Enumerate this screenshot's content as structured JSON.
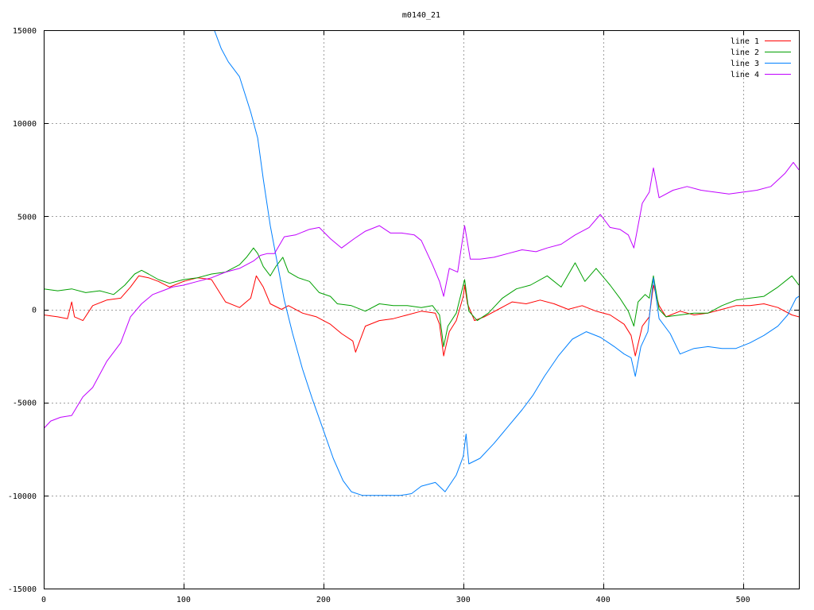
{
  "chart_data": {
    "type": "line",
    "title": "m0140_21",
    "xlabel": "",
    "ylabel": "",
    "xlim": [
      0,
      540
    ],
    "ylim": [
      -15000,
      15000
    ],
    "x_ticks": [
      0,
      100,
      200,
      300,
      400,
      500
    ],
    "y_ticks": [
      -15000,
      -10000,
      -5000,
      0,
      5000,
      10000,
      15000
    ],
    "grid": true,
    "legend_position": "top-right",
    "series": [
      {
        "name": "line 1",
        "color": "#ff0000",
        "points": [
          [
            0,
            -300
          ],
          [
            10,
            -400
          ],
          [
            17,
            -500
          ],
          [
            20,
            400
          ],
          [
            22,
            -400
          ],
          [
            28,
            -600
          ],
          [
            35,
            200
          ],
          [
            45,
            500
          ],
          [
            55,
            600
          ],
          [
            62,
            1200
          ],
          [
            68,
            1800
          ],
          [
            75,
            1700
          ],
          [
            82,
            1500
          ],
          [
            90,
            1200
          ],
          [
            100,
            1500
          ],
          [
            110,
            1700
          ],
          [
            120,
            1600
          ],
          [
            130,
            400
          ],
          [
            140,
            100
          ],
          [
            148,
            600
          ],
          [
            152,
            1800
          ],
          [
            157,
            1200
          ],
          [
            162,
            300
          ],
          [
            170,
            0
          ],
          [
            175,
            200
          ],
          [
            185,
            -200
          ],
          [
            195,
            -400
          ],
          [
            205,
            -800
          ],
          [
            213,
            -1300
          ],
          [
            221,
            -1700
          ],
          [
            223,
            -2300
          ],
          [
            230,
            -900
          ],
          [
            240,
            -600
          ],
          [
            250,
            -500
          ],
          [
            260,
            -300
          ],
          [
            270,
            -100
          ],
          [
            280,
            -200
          ],
          [
            283,
            -800
          ],
          [
            286,
            -2500
          ],
          [
            290,
            -1200
          ],
          [
            295,
            -600
          ],
          [
            300,
            700
          ],
          [
            301,
            1300
          ],
          [
            303,
            300
          ],
          [
            308,
            -600
          ],
          [
            315,
            -400
          ],
          [
            325,
            0
          ],
          [
            335,
            400
          ],
          [
            345,
            300
          ],
          [
            355,
            500
          ],
          [
            365,
            300
          ],
          [
            375,
            0
          ],
          [
            385,
            200
          ],
          [
            395,
            -100
          ],
          [
            405,
            -300
          ],
          [
            415,
            -800
          ],
          [
            420,
            -1400
          ],
          [
            423,
            -2500
          ],
          [
            428,
            -900
          ],
          [
            433,
            -400
          ],
          [
            436,
            1300
          ],
          [
            440,
            200
          ],
          [
            445,
            -400
          ],
          [
            455,
            -100
          ],
          [
            465,
            -300
          ],
          [
            475,
            -200
          ],
          [
            485,
            0
          ],
          [
            495,
            200
          ],
          [
            505,
            200
          ],
          [
            515,
            300
          ],
          [
            525,
            100
          ],
          [
            535,
            -300
          ],
          [
            540,
            -400
          ]
        ]
      },
      {
        "name": "line 2",
        "color": "#00a000",
        "points": [
          [
            0,
            1100
          ],
          [
            10,
            1000
          ],
          [
            20,
            1100
          ],
          [
            30,
            900
          ],
          [
            40,
            1000
          ],
          [
            50,
            800
          ],
          [
            58,
            1300
          ],
          [
            65,
            1900
          ],
          [
            70,
            2100
          ],
          [
            75,
            1900
          ],
          [
            82,
            1600
          ],
          [
            90,
            1400
          ],
          [
            100,
            1600
          ],
          [
            110,
            1700
          ],
          [
            120,
            1900
          ],
          [
            130,
            2000
          ],
          [
            140,
            2400
          ],
          [
            145,
            2800
          ],
          [
            150,
            3300
          ],
          [
            153,
            3000
          ],
          [
            157,
            2300
          ],
          [
            162,
            1800
          ],
          [
            166,
            2300
          ],
          [
            171,
            2800
          ],
          [
            175,
            2000
          ],
          [
            182,
            1700
          ],
          [
            190,
            1500
          ],
          [
            197,
            900
          ],
          [
            205,
            700
          ],
          [
            210,
            300
          ],
          [
            220,
            200
          ],
          [
            230,
            -100
          ],
          [
            240,
            300
          ],
          [
            250,
            200
          ],
          [
            260,
            200
          ],
          [
            270,
            100
          ],
          [
            278,
            200
          ],
          [
            283,
            -300
          ],
          [
            286,
            -2000
          ],
          [
            289,
            -900
          ],
          [
            295,
            -200
          ],
          [
            301,
            1600
          ],
          [
            304,
            -100
          ],
          [
            310,
            -600
          ],
          [
            318,
            -200
          ],
          [
            328,
            600
          ],
          [
            338,
            1100
          ],
          [
            348,
            1300
          ],
          [
            360,
            1800
          ],
          [
            370,
            1200
          ],
          [
            380,
            2500
          ],
          [
            387,
            1500
          ],
          [
            395,
            2200
          ],
          [
            405,
            1300
          ],
          [
            412,
            600
          ],
          [
            418,
            -100
          ],
          [
            422,
            -900
          ],
          [
            425,
            400
          ],
          [
            430,
            800
          ],
          [
            433,
            600
          ],
          [
            436,
            1800
          ],
          [
            440,
            0
          ],
          [
            445,
            -400
          ],
          [
            455,
            -300
          ],
          [
            465,
            -200
          ],
          [
            475,
            -200
          ],
          [
            485,
            200
          ],
          [
            495,
            500
          ],
          [
            505,
            600
          ],
          [
            515,
            700
          ],
          [
            525,
            1200
          ],
          [
            535,
            1800
          ],
          [
            540,
            1300
          ]
        ]
      },
      {
        "name": "line 3",
        "color": "#0080ff",
        "points": [
          [
            122,
            15000
          ],
          [
            127,
            14000
          ],
          [
            132,
            13300
          ],
          [
            140,
            12500
          ],
          [
            148,
            10600
          ],
          [
            153,
            9200
          ],
          [
            157,
            7000
          ],
          [
            162,
            4500
          ],
          [
            167,
            2500
          ],
          [
            172,
            500
          ],
          [
            178,
            -1300
          ],
          [
            185,
            -3200
          ],
          [
            192,
            -4800
          ],
          [
            200,
            -6500
          ],
          [
            207,
            -8000
          ],
          [
            214,
            -9200
          ],
          [
            220,
            -9800
          ],
          [
            228,
            -10000
          ],
          [
            240,
            -10000
          ],
          [
            255,
            -10000
          ],
          [
            263,
            -9900
          ],
          [
            270,
            -9500
          ],
          [
            280,
            -9300
          ],
          [
            287,
            -9800
          ],
          [
            295,
            -8900
          ],
          [
            300,
            -7900
          ],
          [
            302,
            -6700
          ],
          [
            304,
            -8300
          ],
          [
            312,
            -8000
          ],
          [
            322,
            -7200
          ],
          [
            332,
            -6300
          ],
          [
            342,
            -5400
          ],
          [
            350,
            -4600
          ],
          [
            358,
            -3600
          ],
          [
            368,
            -2500
          ],
          [
            378,
            -1600
          ],
          [
            388,
            -1200
          ],
          [
            398,
            -1500
          ],
          [
            408,
            -2000
          ],
          [
            415,
            -2400
          ],
          [
            420,
            -2600
          ],
          [
            423,
            -3600
          ],
          [
            427,
            -2000
          ],
          [
            432,
            -1200
          ],
          [
            436,
            1700
          ],
          [
            440,
            -500
          ],
          [
            448,
            -1300
          ],
          [
            455,
            -2400
          ],
          [
            465,
            -2100
          ],
          [
            475,
            -2000
          ],
          [
            485,
            -2100
          ],
          [
            495,
            -2100
          ],
          [
            505,
            -1800
          ],
          [
            515,
            -1400
          ],
          [
            525,
            -900
          ],
          [
            532,
            -300
          ],
          [
            538,
            600
          ],
          [
            540,
            700
          ]
        ]
      },
      {
        "name": "line 4",
        "color": "#c000ff",
        "points": [
          [
            0,
            -6400
          ],
          [
            5,
            -6000
          ],
          [
            12,
            -5800
          ],
          [
            20,
            -5700
          ],
          [
            28,
            -4700
          ],
          [
            35,
            -4200
          ],
          [
            45,
            -2800
          ],
          [
            55,
            -1800
          ],
          [
            62,
            -400
          ],
          [
            70,
            300
          ],
          [
            78,
            800
          ],
          [
            85,
            1000
          ],
          [
            92,
            1200
          ],
          [
            100,
            1300
          ],
          [
            110,
            1500
          ],
          [
            120,
            1700
          ],
          [
            130,
            2000
          ],
          [
            140,
            2200
          ],
          [
            150,
            2600
          ],
          [
            155,
            2900
          ],
          [
            160,
            3000
          ],
          [
            165,
            3000
          ],
          [
            172,
            3900
          ],
          [
            180,
            4000
          ],
          [
            190,
            4300
          ],
          [
            197,
            4400
          ],
          [
            205,
            3800
          ],
          [
            213,
            3300
          ],
          [
            222,
            3800
          ],
          [
            230,
            4200
          ],
          [
            240,
            4500
          ],
          [
            248,
            4100
          ],
          [
            256,
            4100
          ],
          [
            265,
            4000
          ],
          [
            270,
            3700
          ],
          [
            278,
            2400
          ],
          [
            283,
            1500
          ],
          [
            286,
            700
          ],
          [
            290,
            2200
          ],
          [
            296,
            2000
          ],
          [
            301,
            4500
          ],
          [
            305,
            2700
          ],
          [
            312,
            2700
          ],
          [
            322,
            2800
          ],
          [
            332,
            3000
          ],
          [
            342,
            3200
          ],
          [
            352,
            3100
          ],
          [
            360,
            3300
          ],
          [
            370,
            3500
          ],
          [
            380,
            4000
          ],
          [
            390,
            4400
          ],
          [
            398,
            5100
          ],
          [
            405,
            4400
          ],
          [
            412,
            4300
          ],
          [
            418,
            4000
          ],
          [
            422,
            3300
          ],
          [
            428,
            5700
          ],
          [
            433,
            6300
          ],
          [
            436,
            7600
          ],
          [
            440,
            6000
          ],
          [
            450,
            6400
          ],
          [
            460,
            6600
          ],
          [
            470,
            6400
          ],
          [
            480,
            6300
          ],
          [
            490,
            6200
          ],
          [
            500,
            6300
          ],
          [
            510,
            6400
          ],
          [
            520,
            6600
          ],
          [
            530,
            7300
          ],
          [
            536,
            7900
          ],
          [
            540,
            7500
          ]
        ]
      }
    ]
  }
}
